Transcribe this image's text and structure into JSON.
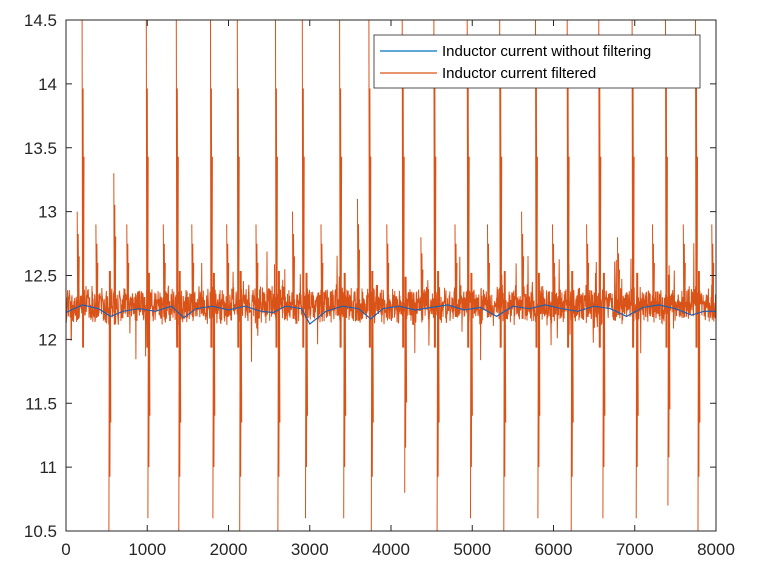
{
  "chart_data": {
    "type": "line",
    "title": "",
    "xlabel": "",
    "ylabel": "",
    "xlim": [
      0,
      8000
    ],
    "ylim": [
      10.5,
      14.5
    ],
    "xticks": [
      0,
      1000,
      2000,
      3000,
      4000,
      5000,
      6000,
      7000,
      8000
    ],
    "yticks": [
      10.5,
      11,
      11.5,
      12,
      12.5,
      13,
      13.5,
      14,
      14.5
    ],
    "xtick_labels": [
      "0",
      "1000",
      "2000",
      "3000",
      "4000",
      "5000",
      "6000",
      "7000",
      "8000"
    ],
    "ytick_labels": [
      "10.5",
      "11",
      "11.5",
      "12",
      "12.5",
      "13",
      "13.5",
      "14",
      "14.5"
    ],
    "grid": false,
    "legend_position": "top-right",
    "series": [
      {
        "name": "Inductor current without filtering",
        "color": "#0072BD",
        "description_level": 12.25,
        "x": [
          0,
          200,
          400,
          550,
          700,
          900,
          1100,
          1300,
          1450,
          1600,
          1800,
          2000,
          2200,
          2400,
          2550,
          2700,
          2900,
          3000,
          3200,
          3400,
          3600,
          3750,
          3900,
          4100,
          4300,
          4500,
          4700,
          4900,
          5100,
          5300,
          5500,
          5700,
          5900,
          6100,
          6300,
          6500,
          6700,
          6900,
          7100,
          7300,
          7500,
          7700,
          7850,
          8000
        ],
        "y": [
          12.21,
          12.27,
          12.24,
          12.18,
          12.22,
          12.24,
          12.22,
          12.26,
          12.17,
          12.24,
          12.26,
          12.23,
          12.26,
          12.22,
          12.21,
          12.26,
          12.24,
          12.12,
          12.22,
          12.26,
          12.24,
          12.16,
          12.24,
          12.26,
          12.23,
          12.25,
          12.27,
          12.23,
          12.25,
          12.18,
          12.26,
          12.24,
          12.27,
          12.24,
          12.22,
          12.26,
          12.24,
          12.18,
          12.25,
          12.27,
          12.24,
          12.19,
          12.22,
          12.22
        ]
      },
      {
        "name": "Inductor current filtered",
        "color": "#D95319",
        "band_center": 12.27,
        "band_halfwidth": 0.14,
        "spike_x": [
          150,
          210,
          380,
          540,
          600,
          760,
          1000,
          1020,
          1210,
          1370,
          1400,
          1560,
          1790,
          1820,
          1990,
          2120,
          2150,
          2350,
          2590,
          2620,
          2800,
          2920,
          2960,
          3150,
          3380,
          3430,
          3600,
          3740,
          3770,
          3960,
          4150,
          4180,
          4380,
          4540,
          4580,
          4800,
          4950,
          4990,
          5200,
          5350,
          5400,
          5620,
          5790,
          5820,
          6000,
          6180,
          6230,
          6420,
          6570,
          6620,
          6800,
          6980,
          7030,
          7230,
          7390,
          7420,
          7610,
          7760,
          7790,
          7960
        ],
        "spike_y": [
          13.0,
          14.5,
          12.9,
          10.5,
          13.3,
          12.9,
          14.5,
          10.6,
          12.9,
          14.5,
          10.5,
          12.9,
          14.5,
          10.6,
          12.9,
          14.5,
          10.5,
          12.9,
          14.5,
          10.5,
          13.0,
          14.5,
          10.6,
          12.9,
          14.5,
          10.6,
          13.1,
          14.5,
          10.5,
          12.9,
          14.5,
          10.8,
          12.8,
          14.5,
          10.5,
          12.9,
          14.5,
          10.6,
          12.9,
          14.5,
          10.5,
          13.0,
          14.5,
          10.6,
          12.9,
          14.5,
          10.5,
          12.9,
          14.5,
          10.6,
          12.8,
          14.5,
          10.6,
          12.9,
          14.5,
          10.7,
          12.9,
          14.5,
          10.5,
          12.9
        ]
      }
    ]
  }
}
